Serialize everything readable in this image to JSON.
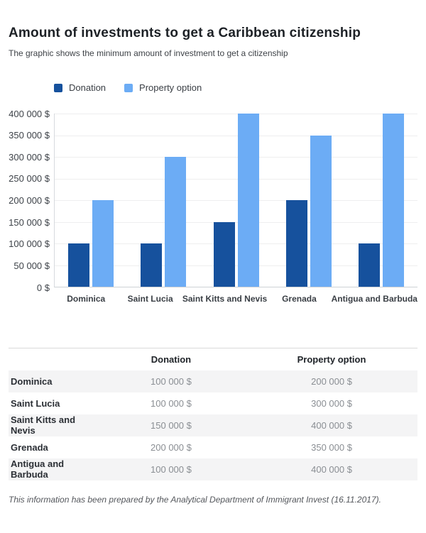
{
  "header": {
    "title": "Amount of investments to get a Caribbean citizenship",
    "subtitle": "The graphic shows the minimum amount of investment to get a citizenship"
  },
  "colors": {
    "donation": "#16519d",
    "property_option": "#6cacf5",
    "gridline": "#eeeeef",
    "axis_line": "#cdd1d5",
    "alt_row_bg": "#f4f4f5",
    "table_border": "#dadada",
    "value_text": "#8a8e93"
  },
  "chart_data": {
    "type": "bar",
    "title": "Amount of investments to get a Caribbean citizenship",
    "subtitle": "The graphic shows the minimum amount of investment to get a citizenship",
    "categories": [
      "Dominica",
      "Saint Lucia",
      "Saint Kitts and Nevis",
      "Grenada",
      "Antigua and Barbuda"
    ],
    "series": [
      {
        "name": "Donation",
        "color": "#16519d",
        "values": [
          100000,
          100000,
          150000,
          200000,
          100000
        ]
      },
      {
        "name": "Property option",
        "color": "#6cacf5",
        "values": [
          200000,
          300000,
          400000,
          350000,
          400000
        ]
      }
    ],
    "xlabel": "",
    "ylabel": "",
    "ylim": [
      0,
      400000
    ],
    "ytick_step": 50000,
    "ytick_labels_top_to_bottom": [
      "400 000 $",
      "350 000 $",
      "300 000 $",
      "250 000 $",
      "200 000 $",
      "150 000 $",
      "100 000 $",
      "50 000 $",
      "0 $"
    ],
    "grid": true,
    "legend_position": "top-left"
  },
  "table": {
    "headers": [
      "",
      "Donation",
      "Property option"
    ],
    "rows": [
      [
        "Dominica",
        "100 000 $",
        "200 000 $"
      ],
      [
        "Saint Lucia",
        "100 000 $",
        "300 000 $"
      ],
      [
        "Saint Kitts and Nevis",
        "150 000 $",
        "400 000 $"
      ],
      [
        "Grenada",
        "200 000 $",
        "350 000 $"
      ],
      [
        "Antigua and Barbuda",
        "100 000 $",
        "400 000 $"
      ]
    ]
  },
  "footer": {
    "note": "This information has been prepared by the Analytical Department of Immigrant Invest (16.11.2017)."
  }
}
